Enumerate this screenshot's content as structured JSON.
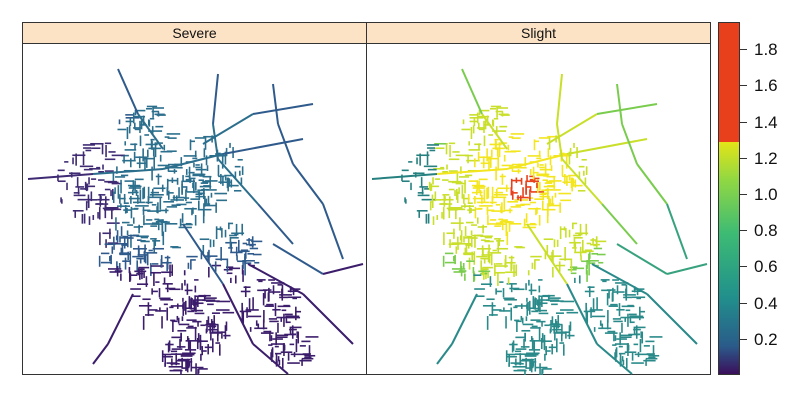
{
  "panels": [
    {
      "title": "Severe"
    },
    {
      "title": "Slight"
    }
  ],
  "legend": {
    "ticks": [
      "0.2",
      "0.4",
      "0.6",
      "0.8",
      "1.0",
      "1.2",
      "1.4",
      "1.6",
      "1.8"
    ],
    "tick_values": [
      0.2,
      0.4,
      0.6,
      0.8,
      1.0,
      1.2,
      1.4,
      1.6,
      1.8
    ],
    "range": [
      0,
      1.95
    ],
    "colors": {
      "low": "#3b0f5c",
      "mid_low": "#2a788e",
      "mid": "#22a884",
      "mid_high": "#7ad151",
      "high": "#fde725",
      "top": "#e8401c"
    }
  },
  "colors": {
    "strip_bg": "#fde3c6",
    "border": "#333333"
  }
}
